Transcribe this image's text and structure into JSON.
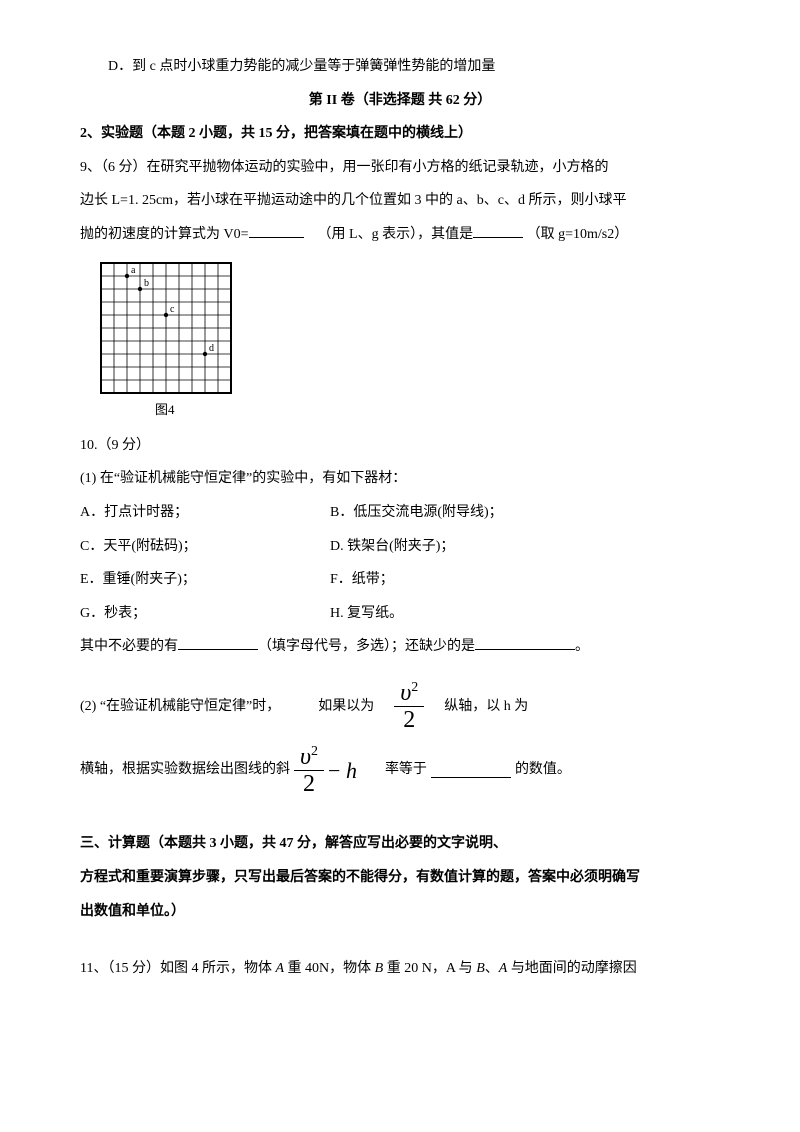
{
  "optionD": "D．到 c 点时小球重力势能的减少量等于弹簧弹性势能的增加量",
  "part2": {
    "title": "第 II 卷（非选择题 共 62 分）",
    "section2_head": "2、实验题（本题 2 小题，共 15 分，把答案填在题中的横线上）",
    "q9_a": " 9、（6 分）在研究平抛物体运动的实验中，用一张印有小方格的纸记录轨迹，小方格的",
    "q9_b": "边长 L=1. 25cm，若小球在平抛运动途中的几个位置如 3 中的 a、b、c、d 所示，则小球平",
    "q9_c_prefix": "抛的初速度的计算式为 V0=",
    "q9_c_mid": "（用 L、g 表示），其值是",
    "q9_c_suffix": "（取 g=10m/s2）",
    "figure": {
      "caption": "图4",
      "cols": 10,
      "rows": 10,
      "cell": 13,
      "points": [
        {
          "label": "a",
          "col": 2,
          "row": 1
        },
        {
          "label": "b",
          "col": 3,
          "row": 2
        },
        {
          "label": "c",
          "col": 5,
          "row": 4
        },
        {
          "label": "d",
          "col": 8,
          "row": 7
        }
      ],
      "border_color": "#000000"
    },
    "q10_head": "10.（9 分）",
    "q10_1_intro": "(1) 在“验证机械能守恒定律”的实验中，有如下器材：",
    "equip": {
      "A": "A．打点计时器；",
      "B": "B．低压交流电源(附导线)；",
      "C": "C．天平(附砝码)；",
      "D": "D. 铁架台(附夹子)；",
      "E": "E．重锤(附夹子)；",
      "F": "F．纸带；",
      "G": "G．秒表；",
      "H": "H. 复写纸。"
    },
    "q10_1_tail_a": "其中不必要的有",
    "q10_1_tail_b": "（填字母代号，多选）；还缺少的是",
    "q10_1_tail_c": "。",
    "q10_2_a": "(2) “在验证机械能守恒定律”时，",
    "q10_2_b": "如果以为",
    "q10_2_c": "纵轴，以 h 为",
    "q10_2_d": "横轴，根据实验数据绘出图线的斜",
    "q10_2_e": "率等于",
    "q10_2_f": "的数值。"
  },
  "part3": {
    "section_head": " 三、计算题（本题共 3 小题，共 47 分，解答应写出必要的文字说明、",
    "section_head2": "方程式和重要演算步骤，只写出最后答案的不能得分，有数值计算的题，答案中必须明确写",
    "section_head3": "出数值和单位。）",
    "q11": "11、（15 分）如图 4 所示，物体 A 重 40N，物体 B 重 20 N，A 与 B、A 与地面间的动摩擦因"
  }
}
